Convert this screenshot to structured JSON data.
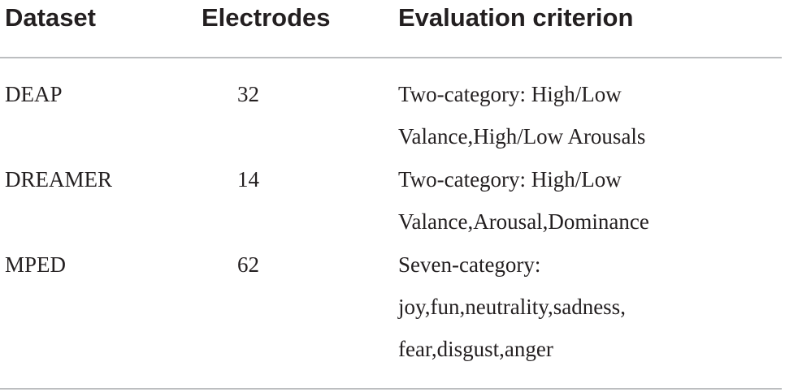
{
  "table": {
    "headers": {
      "dataset": "Dataset",
      "electrodes": "Electrodes",
      "criterion": "Evaluation criterion"
    },
    "rows": [
      {
        "dataset": "DEAP",
        "electrodes": "32",
        "criterion": [
          "Two-category: High/Low",
          "Valance,High/Low Arousals"
        ]
      },
      {
        "dataset": "DREAMER",
        "electrodes": "14",
        "criterion": [
          "Two-category: High/Low",
          "Valance,Arousal,Dominance"
        ]
      },
      {
        "dataset": "MPED",
        "electrodes": "62",
        "criterion": [
          "Seven-category:",
          "joy,fun,neutrality,sadness,",
          "fear,disgust,anger"
        ]
      }
    ]
  }
}
